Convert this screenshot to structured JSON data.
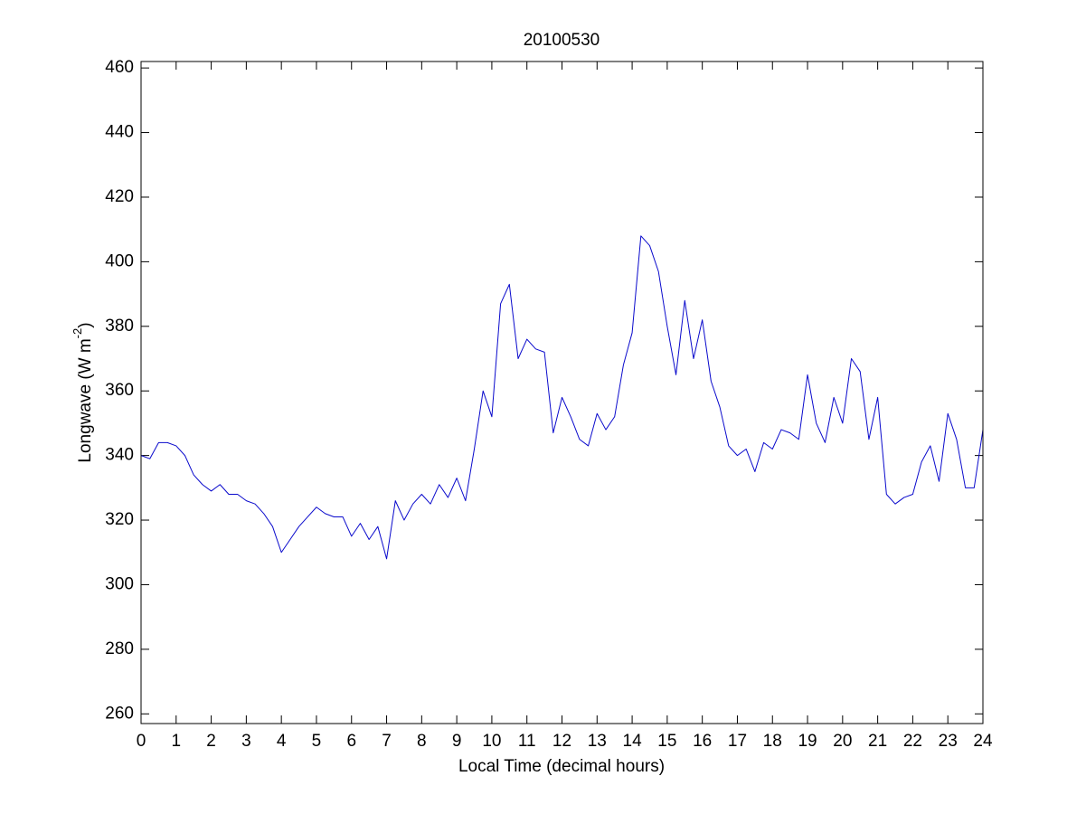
{
  "chart_data": {
    "type": "line",
    "title": "20100530",
    "xlabel": "Local Time (decimal hours)",
    "ylabel": [
      "Longwave (W m",
      "-2",
      ")"
    ],
    "x": [
      0,
      0.25,
      0.5,
      0.75,
      1,
      1.25,
      1.5,
      1.75,
      2,
      2.25,
      2.5,
      2.75,
      3,
      3.25,
      3.5,
      3.75,
      4,
      4.25,
      4.5,
      4.75,
      5,
      5.25,
      5.5,
      5.75,
      6,
      6.25,
      6.5,
      6.75,
      7,
      7.25,
      7.5,
      7.75,
      8,
      8.25,
      8.5,
      8.75,
      9,
      9.25,
      9.5,
      9.75,
      10,
      10.25,
      10.5,
      10.75,
      11,
      11.25,
      11.5,
      11.75,
      12,
      12.25,
      12.5,
      12.75,
      13,
      13.25,
      13.5,
      13.75,
      14,
      14.25,
      14.5,
      14.75,
      15,
      15.25,
      15.5,
      15.75,
      16,
      16.25,
      16.5,
      16.75,
      17,
      17.25,
      17.5,
      17.75,
      18,
      18.25,
      18.5,
      18.75,
      19,
      19.25,
      19.5,
      19.75,
      20,
      20.25,
      20.5,
      20.75,
      21,
      21.25,
      21.5,
      21.75,
      22,
      22.25,
      22.5,
      22.75,
      23,
      23.25,
      23.5,
      23.75,
      24
    ],
    "series": [
      {
        "name": "Longwave",
        "color": "#0a0acc",
        "values": [
          340,
          339,
          344,
          344,
          343,
          340,
          334,
          331,
          329,
          331,
          328,
          328,
          326,
          325,
          322,
          318,
          310,
          314,
          318,
          321,
          324,
          322,
          321,
          321,
          315,
          319,
          314,
          318,
          308,
          326,
          320,
          325,
          328,
          325,
          331,
          327,
          333,
          326,
          342,
          360,
          352,
          387,
          393,
          370,
          376,
          373,
          372,
          347,
          358,
          352,
          345,
          343,
          353,
          348,
          352,
          368,
          378,
          408,
          405,
          397,
          380,
          365,
          388,
          370,
          382,
          363,
          355,
          343,
          340,
          342,
          335,
          344,
          342,
          348,
          347,
          345,
          365,
          350,
          344,
          358,
          350,
          370,
          366,
          345,
          358,
          328,
          325,
          327,
          328,
          338,
          343,
          332,
          353,
          345,
          330,
          330,
          348
        ]
      }
    ],
    "xlim": [
      0,
      24
    ],
    "ylim": [
      257,
      462
    ],
    "xticks": [
      0,
      1,
      2,
      3,
      4,
      5,
      6,
      7,
      8,
      9,
      10,
      11,
      12,
      13,
      14,
      15,
      16,
      17,
      18,
      19,
      20,
      21,
      22,
      23,
      24
    ],
    "yticks": [
      260,
      280,
      300,
      320,
      340,
      360,
      380,
      400,
      420,
      440,
      460
    ]
  }
}
